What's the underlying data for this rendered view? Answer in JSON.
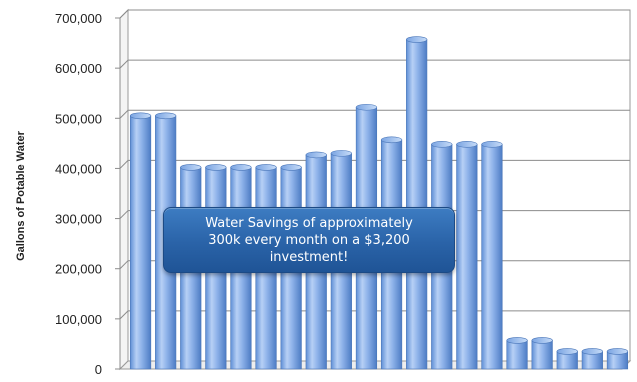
{
  "chart_data": {
    "type": "bar",
    "title": "",
    "xlabel": "",
    "ylabel": "Gallons of Potable Water",
    "ylim": [
      0,
      700000
    ],
    "yticks": [
      "0",
      "100,000",
      "200,000",
      "300,000",
      "400,000",
      "500,000",
      "600,000",
      "700,000"
    ],
    "ytick_values": [
      0,
      100000,
      200000,
      300000,
      400000,
      500000,
      600000,
      700000
    ],
    "grid": true,
    "categories": [
      "",
      "",
      "",
      "",
      "",
      "",
      "",
      "",
      "",
      "",
      "",
      "",
      "",
      "",
      "",
      "",
      "",
      "",
      "",
      ""
    ],
    "values": [
      505000,
      505000,
      402000,
      402000,
      402000,
      402000,
      402000,
      427000,
      430000,
      522000,
      457000,
      657000,
      448000,
      448000,
      448000,
      57000,
      57000,
      35000,
      35000,
      35000
    ],
    "bar_color": "#8fb3ea",
    "annotation": {
      "line1": "Water Savings of approximately",
      "line2": "300k every month on a $3,200",
      "line3": "investment!"
    }
  }
}
